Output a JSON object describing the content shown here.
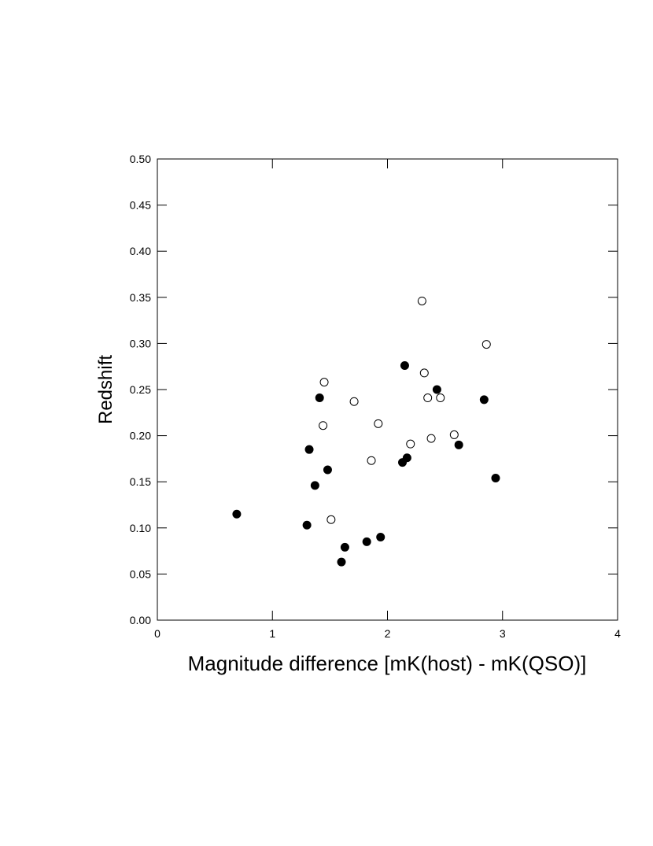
{
  "chart_data": {
    "type": "scatter",
    "x_label": "Magnitude difference [mK(host) - mK(QSO)]",
    "y_label": "Redshift",
    "xlim": [
      0,
      4
    ],
    "xticks": [
      0,
      1,
      2,
      3,
      4
    ],
    "ylim": [
      0,
      0.5
    ],
    "yticks": [
      {
        "value": 0,
        "label": "0.00"
      },
      0.05,
      {
        "value": 0.1,
        "label": "0.10"
      },
      0.15,
      {
        "value": 0.2,
        "label": "0.20"
      },
      0.25,
      {
        "value": 0.3,
        "label": "0.30"
      },
      0.35,
      {
        "value": 0.4,
        "label": "0.40"
      },
      0.45,
      {
        "value": 0.5,
        "label": "0.50"
      }
    ],
    "series": [
      {
        "color": "#000000",
        "filled": true,
        "x": [
          0.69,
          1.3,
          1.32,
          1.37,
          1.41,
          1.48,
          1.6,
          1.63,
          1.82,
          1.94,
          2.13,
          2.17,
          2.15,
          2.43,
          2.62,
          2.84,
          2.94
        ],
        "values": [
          0.115,
          0.103,
          0.185,
          0.146,
          0.241,
          0.163,
          0.063,
          0.079,
          0.085,
          0.09,
          0.171,
          0.176,
          0.276,
          0.25,
          0.19,
          0.239,
          0.154
        ]
      },
      {
        "color": "#000000",
        "filled": false,
        "x": [
          1.45,
          1.44,
          1.51,
          1.71,
          1.86,
          1.92,
          2.2,
          2.3,
          2.32,
          2.35,
          2.38,
          2.46,
          2.58,
          2.86
        ],
        "values": [
          0.258,
          0.211,
          0.109,
          0.237,
          0.173,
          0.213,
          0.191,
          0.346,
          0.268,
          0.241,
          0.197,
          0.241,
          0.201,
          0.299
        ]
      }
    ]
  }
}
